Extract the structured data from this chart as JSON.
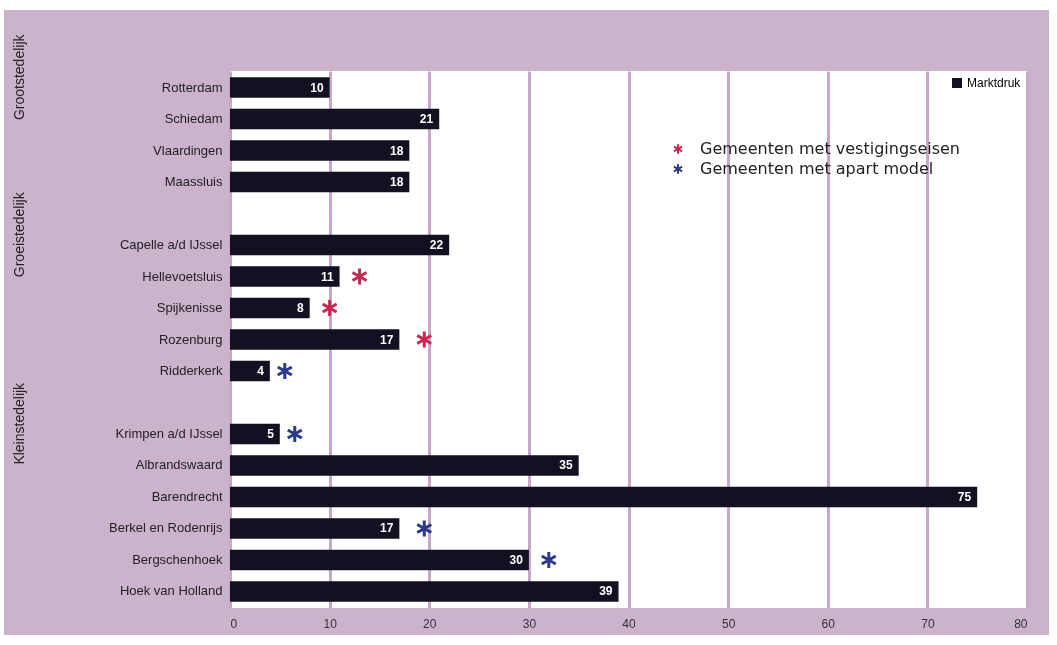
{
  "chart_data": {
    "type": "bar",
    "orientation": "horizontal",
    "categories": [
      "Rotterdam",
      "Schiedam",
      "Vlaardingen",
      "Maassluis",
      null,
      "Capelle a/d IJssel",
      "Hellevoetsluis",
      "Spijkenisse",
      "Rozenburg",
      "Ridderkerk",
      null,
      "Krimpen a/d IJssel",
      "Albrandswaard",
      "Barendrecht",
      "Berkel en Rodenrijs",
      "Bergschenhoek",
      "Hoek van Holland"
    ],
    "series": [
      {
        "name": "Marktdruk",
        "color": "#111122",
        "values": [
          10,
          21,
          18,
          18,
          null,
          22,
          11,
          8,
          17,
          4,
          null,
          5,
          35,
          75,
          17,
          30,
          39
        ],
        "value_labels": [
          "10",
          "21",
          "18",
          "18",
          null,
          "22",
          "11",
          "8",
          "17",
          "4",
          null,
          "5",
          "35",
          "75",
          "17",
          "30",
          "39"
        ]
      },
      {
        "name": "Gemeenten met vestigingseisen",
        "type": "scatter",
        "color": "#c8284f",
        "values": [
          null,
          null,
          null,
          null,
          null,
          null,
          13,
          10,
          19.5,
          null,
          null,
          null,
          null,
          null,
          null,
          null,
          null
        ]
      },
      {
        "name": "Gemeenten met apart model",
        "type": "scatter",
        "color": "#2a3a8a",
        "values": [
          null,
          null,
          null,
          null,
          null,
          null,
          null,
          null,
          null,
          5.5,
          null,
          6.5,
          null,
          null,
          19.5,
          32,
          null
        ]
      }
    ],
    "xlim": [
      0,
      80
    ],
    "xticks": [
      0,
      10,
      20,
      30,
      40,
      50,
      60,
      70,
      80
    ],
    "grid": "x",
    "legend": "top right",
    "marker": "cross",
    "annotations": [
      "Grootstedelijk",
      "Groeistedelijk",
      "Kleinstedelijk"
    ]
  }
}
